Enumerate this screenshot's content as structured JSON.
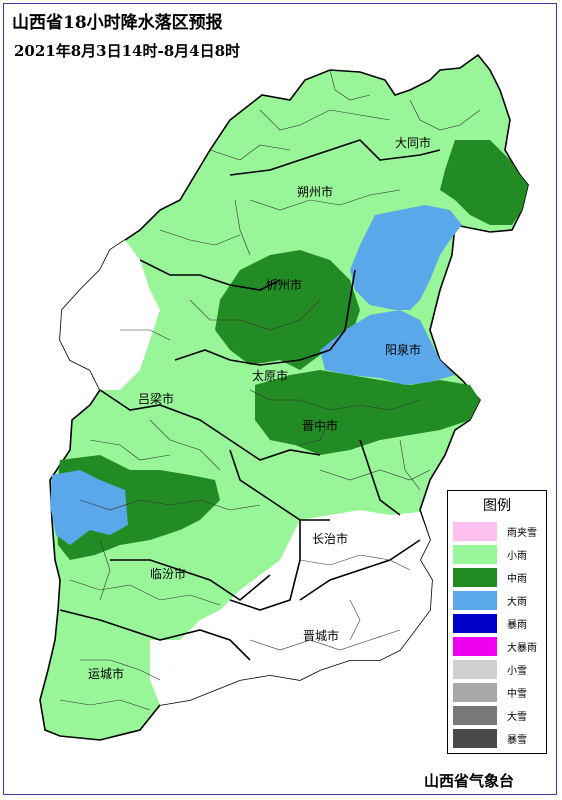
{
  "header": {
    "title": "山西省18小时降水落区预报",
    "period": "2021年8月3日14时-8月4日8时"
  },
  "footer": {
    "credit": "山西省气象台"
  },
  "colors": {
    "light_rain": "#98f598",
    "moderate_rain": "#238b23",
    "heavy_rain": "#5aa8ea",
    "none": "#ffffff"
  },
  "cities": [
    {
      "label": "大同市"
    },
    {
      "label": "朔州市"
    },
    {
      "label": "忻州市"
    },
    {
      "label": "阳泉市"
    },
    {
      "label": "太原市"
    },
    {
      "label": "吕梁市"
    },
    {
      "label": "晋中市"
    },
    {
      "label": "长治市"
    },
    {
      "label": "临汾市"
    },
    {
      "label": "晋城市"
    },
    {
      "label": "运城市"
    }
  ],
  "legend": {
    "title": "图例",
    "items": [
      {
        "label": "雨夹雪",
        "color": "#ffc0f0"
      },
      {
        "label": "小雨",
        "color": "#98f598"
      },
      {
        "label": "中雨",
        "color": "#238b23"
      },
      {
        "label": "大雨",
        "color": "#5aa8ea"
      },
      {
        "label": "暴雨",
        "color": "#0000c8"
      },
      {
        "label": "大暴雨",
        "color": "#f000f0"
      },
      {
        "label": "小雪",
        "color": "#d0d0d0"
      },
      {
        "label": "中雪",
        "color": "#a8a8a8"
      },
      {
        "label": "大雪",
        "color": "#787878"
      },
      {
        "label": "暴雪",
        "color": "#4a4a4a"
      }
    ]
  }
}
